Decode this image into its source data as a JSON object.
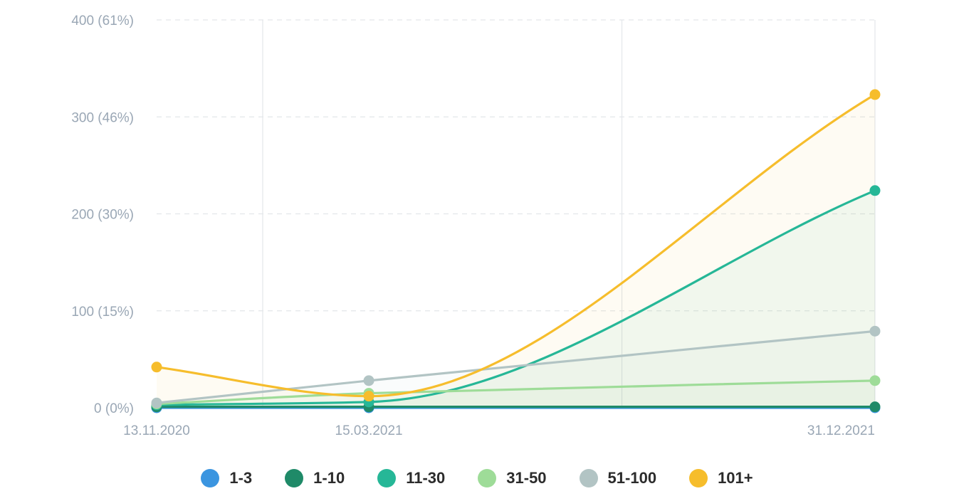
{
  "chart_data": {
    "type": "line",
    "x": [
      "13.11.2020",
      "15.03.2021",
      "31.12.2021"
    ],
    "x_tick_labels": [
      "13.11.2020",
      "15.03.2021",
      "31.12.2021"
    ],
    "y_tick_labels": [
      "0 (0%)",
      "100 (15%)",
      "200 (30%)",
      "300 (46%)",
      "400 (61%)"
    ],
    "ylim": [
      0,
      400
    ],
    "grid": true,
    "legend_position": "bottom",
    "series": [
      {
        "name": "1-3",
        "color": "#3b95e0",
        "values": [
          0,
          0,
          0
        ]
      },
      {
        "name": "1-10",
        "color": "#1f8a68",
        "values": [
          1,
          1,
          1
        ]
      },
      {
        "name": "11-30",
        "color": "#26b797",
        "values": [
          3,
          6,
          224
        ]
      },
      {
        "name": "31-50",
        "color": "#9edc98",
        "values": [
          4,
          15,
          28
        ]
      },
      {
        "name": "51-100",
        "color": "#b2c4c4",
        "values": [
          5,
          28,
          79
        ]
      },
      {
        "name": "101+",
        "color": "#f6bd2c",
        "values": [
          42,
          12,
          323
        ]
      }
    ]
  }
}
